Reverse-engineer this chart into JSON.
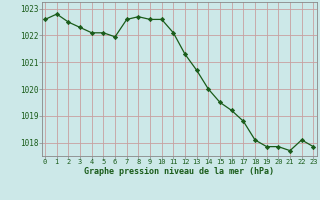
{
  "x": [
    0,
    1,
    2,
    3,
    4,
    5,
    6,
    7,
    8,
    9,
    10,
    11,
    12,
    13,
    14,
    15,
    16,
    17,
    18,
    19,
    20,
    21,
    22,
    23
  ],
  "y": [
    1022.6,
    1022.8,
    1022.5,
    1022.3,
    1022.1,
    1022.1,
    1021.95,
    1022.6,
    1022.7,
    1022.6,
    1022.6,
    1022.1,
    1021.3,
    1020.7,
    1020.0,
    1019.5,
    1019.2,
    1018.8,
    1018.1,
    1017.85,
    1017.85,
    1017.7,
    1018.1,
    1017.85
  ],
  "line_color": "#1a5c1a",
  "marker_color": "#1a5c1a",
  "bg_color": "#cce8e8",
  "grid_color": "#c8a0a0",
  "xlabel": "Graphe pression niveau de la mer (hPa)",
  "ylim": [
    1017.5,
    1023.25
  ],
  "yticks": [
    1018,
    1019,
    1020,
    1021,
    1022,
    1023
  ],
  "xlabel_color": "#1a5c1a",
  "tick_color": "#1a5c1a",
  "spine_color": "#888888"
}
